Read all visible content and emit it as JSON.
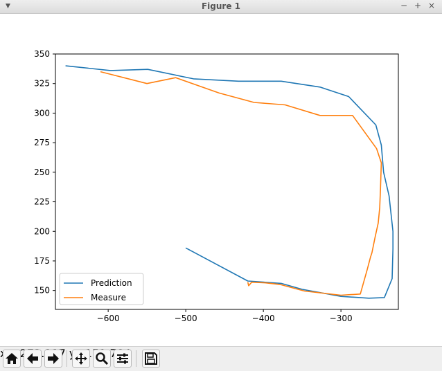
{
  "window": {
    "title": "Figure 1",
    "menu_icon": "chevron-down-icon",
    "minimize_symbol": "−",
    "maximize_symbol": "+",
    "close_symbol": "×"
  },
  "toolbar": {
    "buttons": [
      {
        "name": "home-button",
        "icon": "home-icon"
      },
      {
        "name": "back-button",
        "icon": "arrow-left-icon"
      },
      {
        "name": "forward-button",
        "icon": "arrow-right-icon"
      },
      {
        "name": "pan-button",
        "icon": "move-icon"
      },
      {
        "name": "zoom-button",
        "icon": "magnifier-icon"
      },
      {
        "name": "configure-subplots-button",
        "icon": "sliders-icon"
      },
      {
        "name": "save-button",
        "icon": "floppy-icon"
      }
    ],
    "coord_x": "x=-273.117",
    "coord_y": "y=151.784"
  },
  "chart_data": {
    "type": "line",
    "title": "",
    "xlabel": "",
    "ylabel": "",
    "xlim": [
      -668,
      -226
    ],
    "ylim": [
      134,
      350
    ],
    "xticks": [
      -600,
      -500,
      -400,
      -300
    ],
    "xtick_labels": [
      "−600",
      "−500",
      "−400",
      "−300"
    ],
    "yticks": [
      150,
      175,
      200,
      225,
      250,
      275,
      300,
      325,
      350
    ],
    "ytick_labels": [
      "150",
      "175",
      "200",
      "225",
      "250",
      "275",
      "300",
      "325",
      "350"
    ],
    "grid": false,
    "legend_position": "lower-left",
    "series": [
      {
        "name": "Prediction",
        "color": "#1f77b4",
        "x": [
          -655,
          -597,
          -549,
          -490,
          -432,
          -377,
          -327,
          -290,
          -255,
          -248,
          -245,
          -238,
          -233,
          -233,
          -234,
          -244,
          -264,
          -300,
          -350,
          -377,
          -420,
          -500
        ],
        "y": [
          340,
          336,
          337,
          329,
          327,
          327,
          322,
          314,
          290,
          273,
          250,
          230,
          200,
          185,
          160,
          144,
          143.5,
          145,
          151,
          156,
          158,
          186
        ]
      },
      {
        "name": "Measure",
        "color": "#ff7f0e",
        "x": [
          -610,
          -550,
          -513,
          -457,
          -412,
          -372,
          -327,
          -285,
          -254,
          -248,
          -249,
          -250,
          -252,
          -256,
          -260,
          -262,
          -266,
          -275,
          -300,
          -347,
          -378,
          -398,
          -415,
          -419,
          -420
        ],
        "y": [
          335,
          325,
          330,
          317,
          309,
          307,
          298,
          298,
          270,
          258,
          236,
          220,
          207,
          195,
          182,
          178,
          168,
          147,
          146,
          149.5,
          155,
          156.5,
          157,
          154,
          157
        ]
      }
    ]
  }
}
